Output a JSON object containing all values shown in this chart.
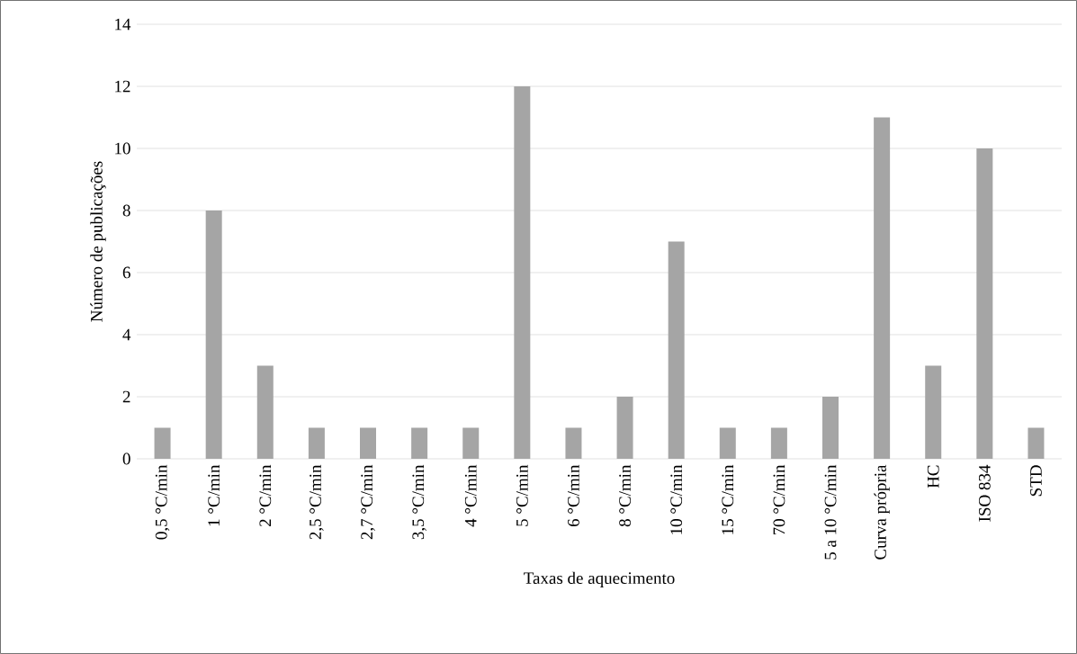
{
  "chart_data": {
    "type": "bar",
    "xlabel": "Taxas de aquecimento",
    "ylabel": "Número de publicações",
    "categories": [
      "0,5 °C/min",
      "1 °C/min",
      "2 °C/min",
      "2,5 °C/min",
      "2,7 °C/min",
      "3,5 °C/min",
      "4 °C/min",
      "5 °C/min",
      "6 °C/min",
      "8 °C/min",
      "10 °C/min",
      "15 °C/min",
      "70 °C/min",
      "5 a 10 °C/min",
      "Curva própria",
      "HC",
      "ISO 834",
      "STD"
    ],
    "values": [
      1,
      8,
      3,
      1,
      1,
      1,
      1,
      12,
      1,
      2,
      7,
      1,
      1,
      2,
      11,
      3,
      10,
      1
    ],
    "color": "#a5a5a5",
    "ylim": [
      0,
      14
    ],
    "yticks": [
      0,
      2,
      4,
      6,
      8,
      10,
      12,
      14
    ],
    "grid": "y"
  }
}
